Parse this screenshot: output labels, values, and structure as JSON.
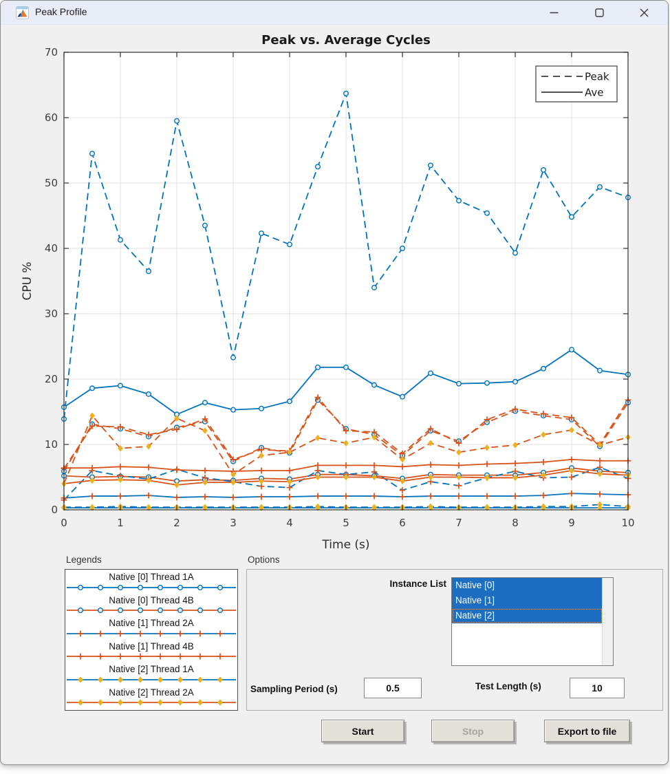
{
  "window": {
    "title": "Peak Profile"
  },
  "colors": {
    "blue": "#0072BD",
    "orange": "#D95319",
    "yellow": "#EDB120",
    "selection_blue": "#1b6ec2",
    "titlebar": "#e9edf8",
    "figure_bg": "#f0f0f0"
  },
  "chart_data": {
    "type": "line",
    "title": "Peak vs. Average Cycles",
    "xlabel": "Time (s)",
    "ylabel": "CPU %",
    "xlim": [
      0,
      10
    ],
    "ylim": [
      0,
      70
    ],
    "xticks": [
      0,
      1,
      2,
      3,
      4,
      5,
      6,
      7,
      8,
      9,
      10
    ],
    "yticks": [
      0,
      10,
      20,
      30,
      40,
      50,
      60,
      70
    ],
    "grid": true,
    "legend_position": "top-right",
    "legend_entries": [
      {
        "label": "Peak",
        "style": "dashed"
      },
      {
        "label": "Ave",
        "style": "solid"
      }
    ],
    "x": [
      0,
      0.5,
      1,
      1.5,
      2,
      2.5,
      3,
      3.5,
      4,
      4.5,
      5,
      5.5,
      6,
      6.5,
      7,
      7.5,
      8,
      8.5,
      9,
      9.5,
      10
    ],
    "series": [
      {
        "name": "Native [0] Thread 1A Peak",
        "line_color": "blue",
        "line_style": "dashed",
        "marker": "circle",
        "marker_color": "blue",
        "values": [
          13.9,
          54.5,
          41.3,
          36.5,
          59.5,
          43.5,
          23.3,
          42.3,
          40.6,
          52.5,
          63.7,
          34.0,
          40.0,
          52.7,
          47.3,
          45.4,
          39.3,
          52.0,
          44.8,
          49.4,
          47.8
        ]
      },
      {
        "name": "Native [0] Thread 1A Ave",
        "line_color": "blue",
        "line_style": "solid",
        "marker": "circle",
        "marker_color": "blue",
        "values": [
          15.7,
          18.6,
          19.0,
          17.7,
          14.6,
          16.4,
          15.3,
          15.5,
          16.6,
          21.8,
          21.8,
          19.1,
          17.3,
          20.9,
          19.3,
          19.4,
          19.6,
          21.6,
          24.5,
          21.3,
          20.7
        ]
      },
      {
        "name": "Native [0] Thread 4B Peak",
        "line_color": "orange",
        "line_style": "dashed",
        "marker": "circle",
        "marker_color": "blue",
        "values": [
          5.9,
          13.1,
          12.4,
          11.2,
          12.6,
          13.5,
          7.4,
          9.5,
          8.7,
          16.8,
          12.4,
          11.5,
          8.3,
          12.1,
          10.5,
          13.4,
          15.1,
          14.4,
          13.8,
          9.7,
          16.4
        ]
      },
      {
        "name": "Native [0] Thread 4B Ave",
        "line_color": "orange",
        "line_style": "solid",
        "marker": "circle",
        "marker_color": "blue",
        "values": [
          5.2,
          5.0,
          5.1,
          5.0,
          4.4,
          4.6,
          4.5,
          4.8,
          4.7,
          5.4,
          5.4,
          5.2,
          4.8,
          5.4,
          5.3,
          5.3,
          5.3,
          5.7,
          6.4,
          5.9,
          5.7
        ]
      },
      {
        "name": "Native [1] Thread 2A Peak",
        "line_color": "blue",
        "line_style": "dashed",
        "marker": "plus",
        "marker_color": "orange",
        "values": [
          1.5,
          6.0,
          5.2,
          4.7,
          6.2,
          4.9,
          4.3,
          3.6,
          3.4,
          6.0,
          5.4,
          5.8,
          3.0,
          4.3,
          3.7,
          4.9,
          5.9,
          4.9,
          5.0,
          6.5,
          4.8
        ]
      },
      {
        "name": "Native [1] Thread 2A Ave",
        "line_color": "blue",
        "line_style": "solid",
        "marker": "plus",
        "marker_color": "orange",
        "values": [
          1.8,
          2.1,
          2.1,
          2.2,
          1.9,
          2.0,
          1.9,
          2.0,
          2.0,
          2.1,
          2.1,
          2.1,
          2.0,
          2.1,
          2.1,
          2.1,
          2.1,
          2.2,
          2.5,
          2.4,
          2.3
        ]
      },
      {
        "name": "Native [1] Thread 4B Peak",
        "line_color": "orange",
        "line_style": "dashed",
        "marker": "plus",
        "marker_color": "orange",
        "values": [
          6.3,
          12.8,
          12.7,
          11.5,
          12.3,
          13.9,
          7.7,
          9.2,
          9.0,
          17.2,
          12.1,
          11.9,
          8.6,
          12.4,
          10.2,
          13.8,
          15.4,
          14.7,
          14.1,
          10.0,
          16.8
        ]
      },
      {
        "name": "Native [1] Thread 4B Ave",
        "line_color": "orange",
        "line_style": "solid",
        "marker": "plus",
        "marker_color": "orange",
        "values": [
          6.4,
          6.4,
          6.6,
          6.5,
          6.1,
          6.0,
          5.9,
          6.0,
          6.0,
          6.8,
          6.8,
          6.8,
          6.6,
          6.9,
          6.8,
          7.0,
          7.1,
          7.3,
          7.7,
          7.5,
          7.5
        ]
      },
      {
        "name": "Native [2] Thread 1A Peak",
        "line_color": "blue",
        "line_style": "dashed",
        "marker": "diamond",
        "marker_color": "yellow",
        "values": [
          0.4,
          0.4,
          0.5,
          0.4,
          0.4,
          0.4,
          0.4,
          0.4,
          0.4,
          0.5,
          0.4,
          0.4,
          0.4,
          0.5,
          0.4,
          0.4,
          0.4,
          0.5,
          0.5,
          0.8,
          0.5
        ]
      },
      {
        "name": "Native [2] Thread 1A Ave",
        "line_color": "blue",
        "line_style": "solid",
        "marker": "diamond",
        "marker_color": "yellow",
        "values": [
          0.3,
          0.3,
          0.3,
          0.3,
          0.3,
          0.3,
          0.3,
          0.3,
          0.3,
          0.3,
          0.3,
          0.3,
          0.3,
          0.3,
          0.3,
          0.3,
          0.3,
          0.3,
          0.3,
          0.3,
          0.3
        ]
      },
      {
        "name": "Native [2] Thread 2A Peak",
        "line_color": "orange",
        "line_style": "dashed",
        "marker": "diamond",
        "marker_color": "yellow",
        "values": [
          4.0,
          14.4,
          9.4,
          9.7,
          14.0,
          12.1,
          5.4,
          8.3,
          8.8,
          11.0,
          10.2,
          11.1,
          7.7,
          10.2,
          8.8,
          9.5,
          9.9,
          11.5,
          12.2,
          9.9,
          11.1
        ]
      },
      {
        "name": "Native [2] Thread 2A Ave",
        "line_color": "orange",
        "line_style": "solid",
        "marker": "diamond",
        "marker_color": "yellow",
        "values": [
          4.0,
          4.5,
          4.6,
          4.5,
          3.8,
          4.2,
          4.2,
          4.4,
          4.3,
          5.0,
          5.0,
          5.0,
          4.4,
          5.0,
          5.0,
          4.9,
          4.9,
          5.3,
          6.0,
          5.5,
          5.3
        ]
      }
    ]
  },
  "legends_panel": {
    "label": "Legends",
    "items": [
      {
        "label": "Native [0] Thread 1A",
        "line_color": "blue",
        "marker": "circle",
        "marker_color": "blue"
      },
      {
        "label": "Native [0] Thread 4B",
        "line_color": "orange",
        "marker": "circle",
        "marker_color": "blue"
      },
      {
        "label": "Native [1] Thread 2A",
        "line_color": "blue",
        "marker": "plus",
        "marker_color": "orange"
      },
      {
        "label": "Native [1] Thread 4B",
        "line_color": "orange",
        "marker": "plus",
        "marker_color": "orange"
      },
      {
        "label": "Native [2] Thread 1A",
        "line_color": "blue",
        "marker": "diamond",
        "marker_color": "yellow"
      },
      {
        "label": "Native [2] Thread 2A",
        "line_color": "orange",
        "marker": "diamond",
        "marker_color": "yellow"
      }
    ]
  },
  "options_panel": {
    "label": "Options",
    "instance_list_label": "Instance List",
    "instances": [
      {
        "label": "Native [0]",
        "selected": true,
        "focused": false
      },
      {
        "label": "Native [1]",
        "selected": true,
        "focused": false
      },
      {
        "label": "Native [2]",
        "selected": true,
        "focused": true
      }
    ],
    "sampling_label": "Sampling Period (s)",
    "sampling_value": "0.5",
    "test_length_label": "Test Length (s)",
    "test_length_value": "10"
  },
  "buttons": [
    {
      "label": "Start",
      "enabled": true
    },
    {
      "label": "Stop",
      "enabled": false
    },
    {
      "label": "Export to file",
      "enabled": true
    }
  ]
}
